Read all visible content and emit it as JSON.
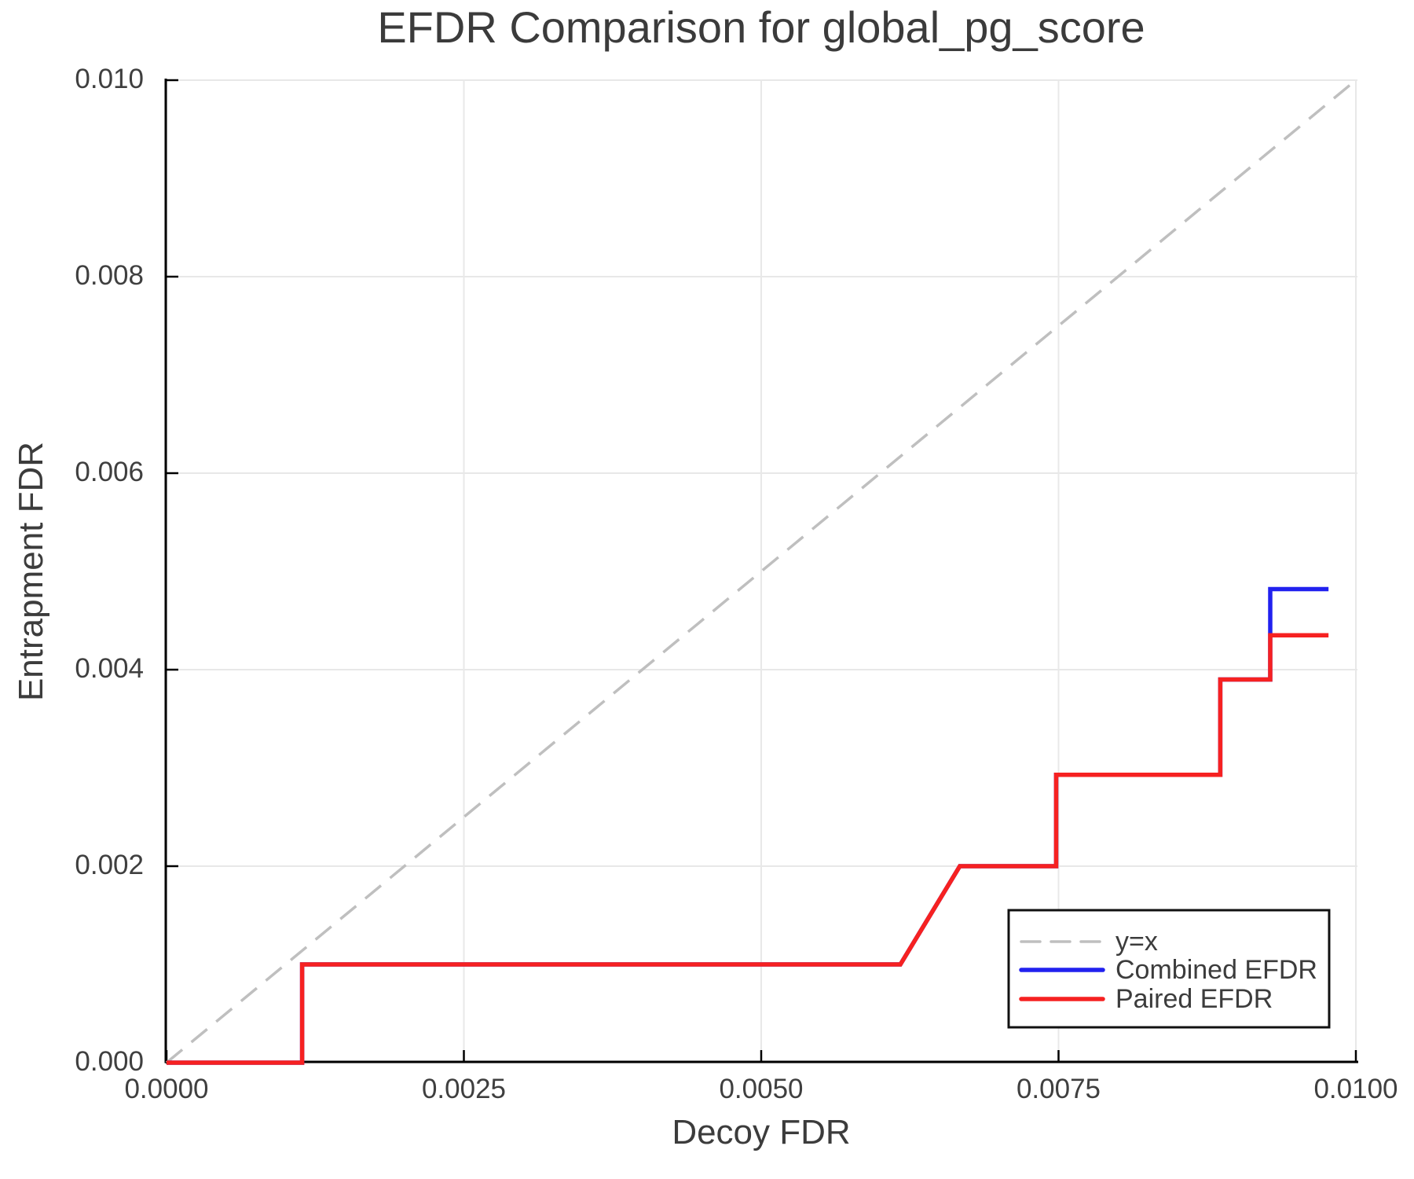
{
  "chart_data": {
    "type": "line",
    "title": "EFDR Comparison for global_pg_score",
    "xlabel": "Decoy FDR",
    "ylabel": "Entrapment FDR",
    "xlim": [
      0,
      0.01
    ],
    "ylim": [
      0,
      0.01
    ],
    "grid": true,
    "grid_color": "#e8e8e8",
    "axis_color": "#000000",
    "text_color": "#3c3c3c",
    "x_tick_values": [
      0.0,
      0.0025,
      0.005,
      0.0075,
      0.01
    ],
    "x_tick_labels": [
      "0.0000",
      "0.0025",
      "0.0050",
      "0.0075",
      "0.0100"
    ],
    "y_tick_values": [
      0.0,
      0.002,
      0.004,
      0.006,
      0.008,
      0.01
    ],
    "y_tick_labels": [
      "0.000",
      "0.002",
      "0.004",
      "0.006",
      "0.008",
      "0.010"
    ],
    "legend_position": "lower right inset",
    "series": [
      {
        "name": "y=x",
        "color": "#bfbfbf",
        "style": "dashed",
        "width": 3.5,
        "points": [
          [
            0,
            0
          ],
          [
            0.01,
            0.01
          ]
        ]
      },
      {
        "name": "Combined EFDR",
        "color": "#2121ef",
        "style": "solid",
        "width": 5.5,
        "points": [
          [
            0,
            0
          ],
          [
            0.00114,
            0
          ],
          [
            0.00114,
            0.001
          ],
          [
            0.00617,
            0.001
          ],
          [
            0.00667,
            0.002
          ],
          [
            0.00748,
            0.002
          ],
          [
            0.00748,
            0.00293
          ],
          [
            0.00886,
            0.00293
          ],
          [
            0.00886,
            0.0039
          ],
          [
            0.00928,
            0.0039
          ],
          [
            0.00928,
            0.00482
          ],
          [
            0.00977,
            0.00482
          ]
        ]
      },
      {
        "name": "Paired EFDR",
        "color": "#f62121",
        "style": "solid",
        "width": 5.5,
        "points": [
          [
            0,
            0
          ],
          [
            0.00114,
            0
          ],
          [
            0.00114,
            0.001
          ],
          [
            0.00617,
            0.001
          ],
          [
            0.00667,
            0.002
          ],
          [
            0.00748,
            0.002
          ],
          [
            0.00748,
            0.00293
          ],
          [
            0.00886,
            0.00293
          ],
          [
            0.00886,
            0.0039
          ],
          [
            0.00928,
            0.0039
          ],
          [
            0.00928,
            0.00435
          ],
          [
            0.00977,
            0.00435
          ]
        ]
      }
    ]
  }
}
